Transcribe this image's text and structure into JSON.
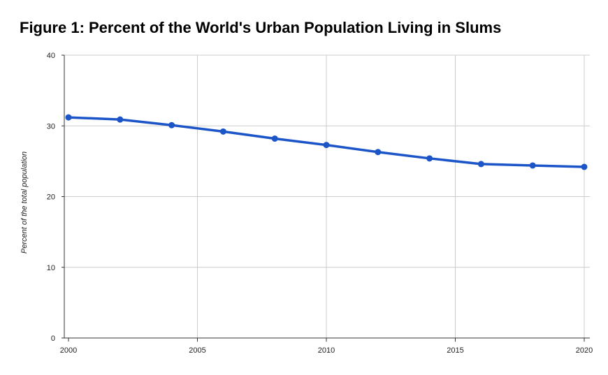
{
  "chart_data": {
    "type": "line",
    "title": "Figure 1: Percent of the World's Urban Population Living in Slums",
    "xlabel": "",
    "ylabel": "Percent of the total population",
    "xlim": [
      2000,
      2020
    ],
    "ylim": [
      0,
      40
    ],
    "x_ticks": [
      2000,
      2005,
      2010,
      2015,
      2020
    ],
    "y_ticks": [
      0,
      10,
      20,
      30,
      40
    ],
    "grid": true,
    "legend": "none",
    "series": [
      {
        "color": "#1c55c8",
        "x": [
          2000,
          2002,
          2004,
          2006,
          2008,
          2010,
          2012,
          2014,
          2016,
          2018,
          2020
        ],
        "values": [
          31.2,
          30.9,
          30.1,
          29.2,
          28.2,
          27.3,
          26.3,
          25.4,
          24.6,
          24.4,
          24.2
        ]
      }
    ]
  }
}
